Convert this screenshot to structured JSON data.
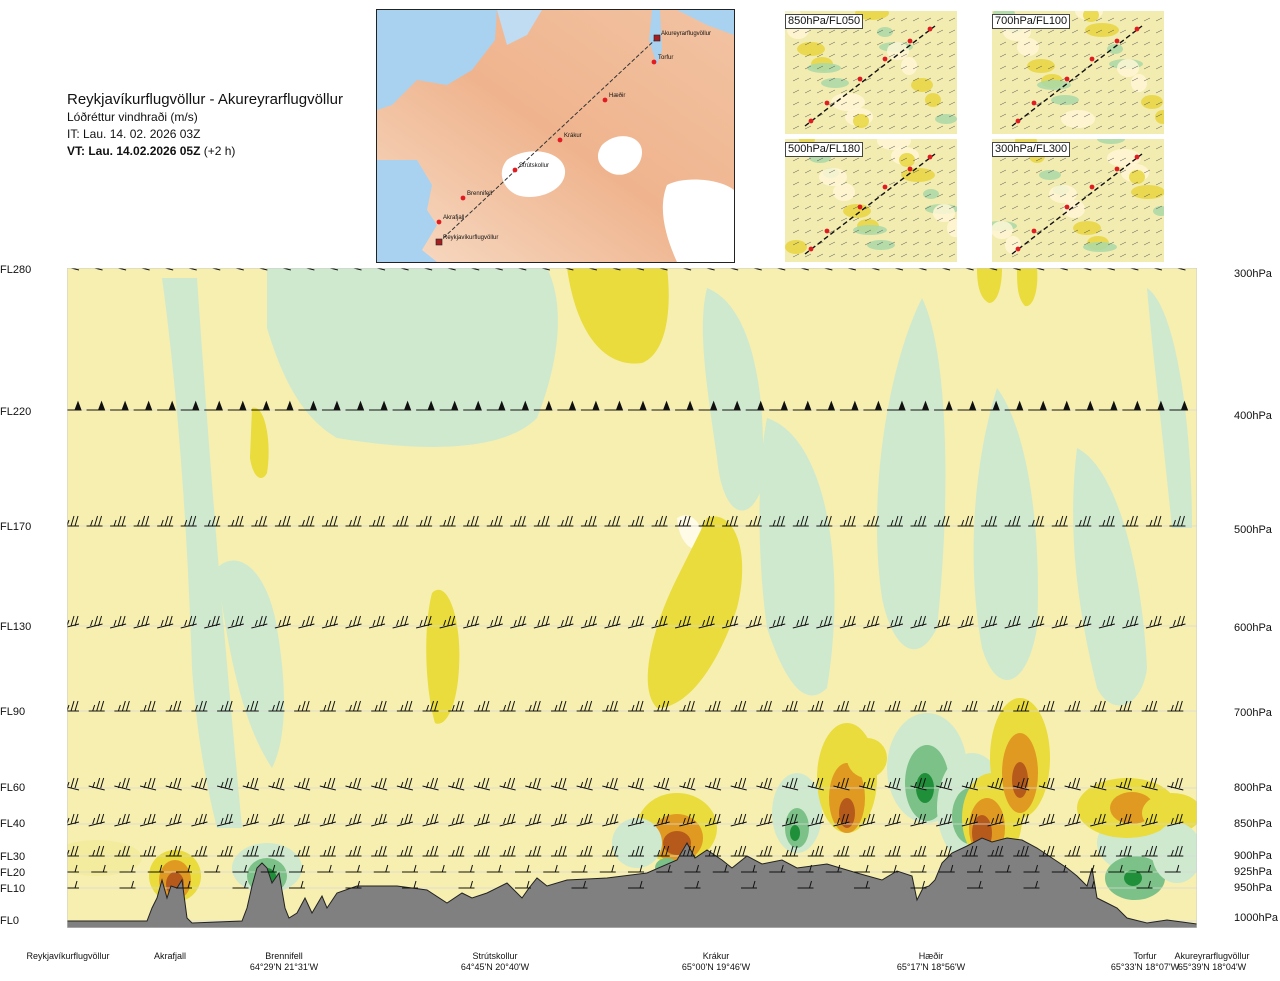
{
  "header": {
    "route": "Reykjavíkurflugvöllur - Akureyrarflugvöllur",
    "product": "Lóðréttur vindhraði (m/s)",
    "issue_time": "IT: Lau. 14. 02. 2026 03Z",
    "valid_time": "VT: Lau. 14.02.2026 05Z",
    "lead_time": "(+2 h)"
  },
  "map": {
    "places": [
      {
        "name": "Akureyrarflugvöllur",
        "type": "airport"
      },
      {
        "name": "Torfur",
        "type": "point"
      },
      {
        "name": "Hæðir",
        "type": "point"
      },
      {
        "name": "Krákur",
        "type": "point"
      },
      {
        "name": "Strútskollur",
        "type": "point"
      },
      {
        "name": "Brennifell",
        "type": "point"
      },
      {
        "name": "Akrafjall",
        "type": "point"
      },
      {
        "name": "Reykjavíkurflugvöllur",
        "type": "airport"
      }
    ],
    "colors": {
      "sea": "#a8d2f0",
      "land_low": "#f6d8c0",
      "land_high": "#e9a77c",
      "glacier": "#ffffff",
      "route": "#333333",
      "point": "#e11b22"
    }
  },
  "thumbnails": [
    {
      "label": "850hPa/FL050"
    },
    {
      "label": "700hPa/FL100"
    },
    {
      "label": "500hPa/FL180"
    },
    {
      "label": "300hPa/FL300"
    }
  ],
  "levels": [
    {
      "fl": "FL280",
      "hpa": "300hPa"
    },
    {
      "fl": "FL220",
      "hpa": "400hPa"
    },
    {
      "fl": "FL170",
      "hpa": "500hPa"
    },
    {
      "fl": "FL130",
      "hpa": "600hPa"
    },
    {
      "fl": "FL90",
      "hpa": "700hPa"
    },
    {
      "fl": "FL60",
      "hpa": "800hPa"
    },
    {
      "fl": "FL40",
      "hpa": "850hPa"
    },
    {
      "fl": "FL30",
      "hpa": "900hPa"
    },
    {
      "fl": "FL20",
      "hpa": "925hPa"
    },
    {
      "fl": "FL10",
      "hpa": "950hPa"
    },
    {
      "fl": "FL0",
      "hpa": "1000hPa"
    }
  ],
  "waypoints": [
    {
      "name": "Reykjavíkurflugvöllur",
      "coord": ""
    },
    {
      "name": "Akrafjall",
      "coord": ""
    },
    {
      "name": "Brennifell",
      "coord": "64°29'N 21°31'W"
    },
    {
      "name": "Strútskollur",
      "coord": "64°45'N 20°40'W"
    },
    {
      "name": "Krákur",
      "coord": "65°00'N 19°46'W"
    },
    {
      "name": "Hæðir",
      "coord": "65°17'N 18°56'W"
    },
    {
      "name": "Torfur",
      "coord": "65°33'N 18°07'W"
    },
    {
      "name": "Akureyrarflugvöllur",
      "coord": "65°39'N 18°04'W"
    }
  ],
  "legend_colors": {
    "strong_down": "#1f8f3a",
    "mod_down": "#7cc187",
    "weak_down": "#cfe9cf",
    "neutral": "#fbf5c8",
    "near_zero": "#fffbe6",
    "weak_up": "#f3ec9e",
    "mod_up": "#e9dc3c",
    "strong_up": "#e09a22",
    "very_strong_up": "#b65a1c",
    "terrain": "#808080"
  }
}
